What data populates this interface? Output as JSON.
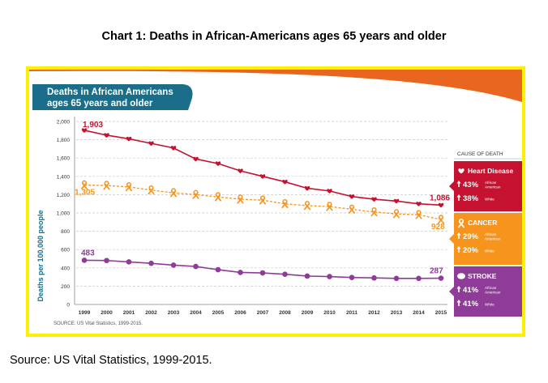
{
  "page": {
    "title": "Chart 1: Deaths in African-Americans ages 65 years and older",
    "source": "Source: US Vital Statistics, 1999-2015."
  },
  "colors": {
    "heart": "#c41230",
    "cancer": "#f7941d",
    "stroke": "#8e3c97",
    "teal": "#1a6e8a",
    "banner": "#e8661f",
    "frame": "#fdf000"
  },
  "chart_data": {
    "type": "line",
    "title": "Deaths in African Americans ages 65 years and older",
    "ylabel": "Deaths per 100,000 people",
    "xlabel": "",
    "ylim": [
      0,
      2000
    ],
    "yticks": [
      "0",
      "200",
      "400",
      "600",
      "800",
      "1,000",
      "1,200",
      "1,400",
      "1,600",
      "1,800",
      "2,000"
    ],
    "x": [
      "1999",
      "2000",
      "2001",
      "2002",
      "2003",
      "2004",
      "2005",
      "2006",
      "2007",
      "2008",
      "2009",
      "2010",
      "2011",
      "2012",
      "2013",
      "2014",
      "2015"
    ],
    "grid": true,
    "source_note": "SOURCE: US Vital Statistics, 1999-2015.",
    "series": [
      {
        "key": "heart",
        "values": [
          1903,
          1850,
          1810,
          1760,
          1710,
          1590,
          1540,
          1460,
          1400,
          1340,
          1270,
          1240,
          1180,
          1150,
          1130,
          1100,
          1086
        ],
        "start_label": "1,903",
        "end_label": "1,086"
      },
      {
        "key": "cancer",
        "values": [
          1305,
          1300,
          1285,
          1250,
          1220,
          1200,
          1175,
          1150,
          1140,
          1100,
          1080,
          1070,
          1040,
          1010,
          990,
          980,
          928
        ],
        "start_label": "1,305",
        "end_label": "928"
      },
      {
        "key": "stroke",
        "values": [
          483,
          480,
          465,
          450,
          430,
          415,
          380,
          350,
          345,
          330,
          310,
          305,
          295,
          290,
          285,
          285,
          287
        ],
        "start_label": "483",
        "end_label": "287"
      }
    ],
    "legend": {
      "header": "CAUSE OF DEATH",
      "placement": "right",
      "groups": [
        {
          "key": "heart",
          "name": "Heart Disease",
          "rows": [
            {
              "pct": "43%",
              "group": "African American"
            },
            {
              "pct": "38%",
              "group": "White"
            }
          ]
        },
        {
          "key": "cancer",
          "name": "CANCER",
          "rows": [
            {
              "pct": "29%",
              "group": "African American"
            },
            {
              "pct": "20%",
              "group": "White"
            }
          ]
        },
        {
          "key": "stroke",
          "name": "STROKE",
          "rows": [
            {
              "pct": "41%",
              "group": "African American"
            },
            {
              "pct": "41%",
              "group": "White"
            }
          ]
        }
      ]
    }
  }
}
